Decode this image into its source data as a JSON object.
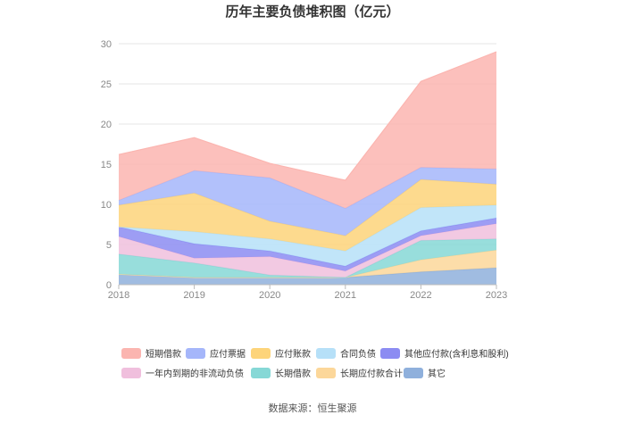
{
  "chart_data": {
    "type": "area",
    "stacked": true,
    "title": "历年主要负债堆积图（亿元）",
    "x": [
      "2018",
      "2019",
      "2020",
      "2021",
      "2022",
      "2023"
    ],
    "yticks": [
      "0",
      "5",
      "10",
      "15",
      "20",
      "25",
      "30"
    ],
    "ylim": [
      0,
      30
    ],
    "series": [
      {
        "name": "其它",
        "color": "#8fb0dc",
        "values": [
          1.3,
          0.9,
          0.9,
          0.9,
          1.6,
          2.1
        ]
      },
      {
        "name": "长期应付款合计",
        "color": "#fcd79a",
        "values": [
          0.0,
          0.0,
          0.0,
          0.0,
          1.5,
          2.2
        ]
      },
      {
        "name": "长期借款",
        "color": "#86d8d6",
        "values": [
          2.5,
          1.8,
          0.3,
          0.0,
          2.4,
          1.4
        ]
      },
      {
        "name": "一年内到期的非流动负债",
        "color": "#f0bfdd",
        "values": [
          2.2,
          0.6,
          2.3,
          0.8,
          0.6,
          1.9
        ]
      },
      {
        "name": "其他应付款(含利息和股利)",
        "color": "#8c8cf2",
        "values": [
          1.2,
          1.8,
          0.7,
          0.6,
          0.6,
          0.7
        ]
      },
      {
        "name": "合同负债",
        "color": "#b6e0f8",
        "values": [
          0.0,
          1.5,
          1.5,
          1.9,
          2.9,
          1.6
        ]
      },
      {
        "name": "应付账款",
        "color": "#fdd47a",
        "values": [
          2.7,
          4.8,
          2.2,
          1.9,
          3.5,
          2.6
        ]
      },
      {
        "name": "应付票据",
        "color": "#a5b6fa",
        "values": [
          0.6,
          2.8,
          5.4,
          3.4,
          1.5,
          1.9
        ]
      },
      {
        "name": "短期借款",
        "color": "#fbb5b0",
        "values": [
          5.7,
          4.1,
          1.8,
          3.5,
          10.7,
          14.6
        ]
      }
    ],
    "legend": [
      {
        "name": "短期借款",
        "color": "#fbb5b0"
      },
      {
        "name": "应付票据",
        "color": "#a5b6fa"
      },
      {
        "name": "应付账款",
        "color": "#fdd47a"
      },
      {
        "name": "合同负债",
        "color": "#b6e0f8"
      },
      {
        "name": "其他应付款(含利息和股利)",
        "color": "#8c8cf2"
      },
      {
        "name": "一年内到期的非流动负债",
        "color": "#f0bfdd"
      },
      {
        "name": "长期借款",
        "color": "#86d8d6"
      },
      {
        "name": "长期应付款合计",
        "color": "#fcd79a"
      },
      {
        "name": "其它",
        "color": "#8fb0dc"
      }
    ]
  },
  "source": "数据来源：恒生聚源"
}
